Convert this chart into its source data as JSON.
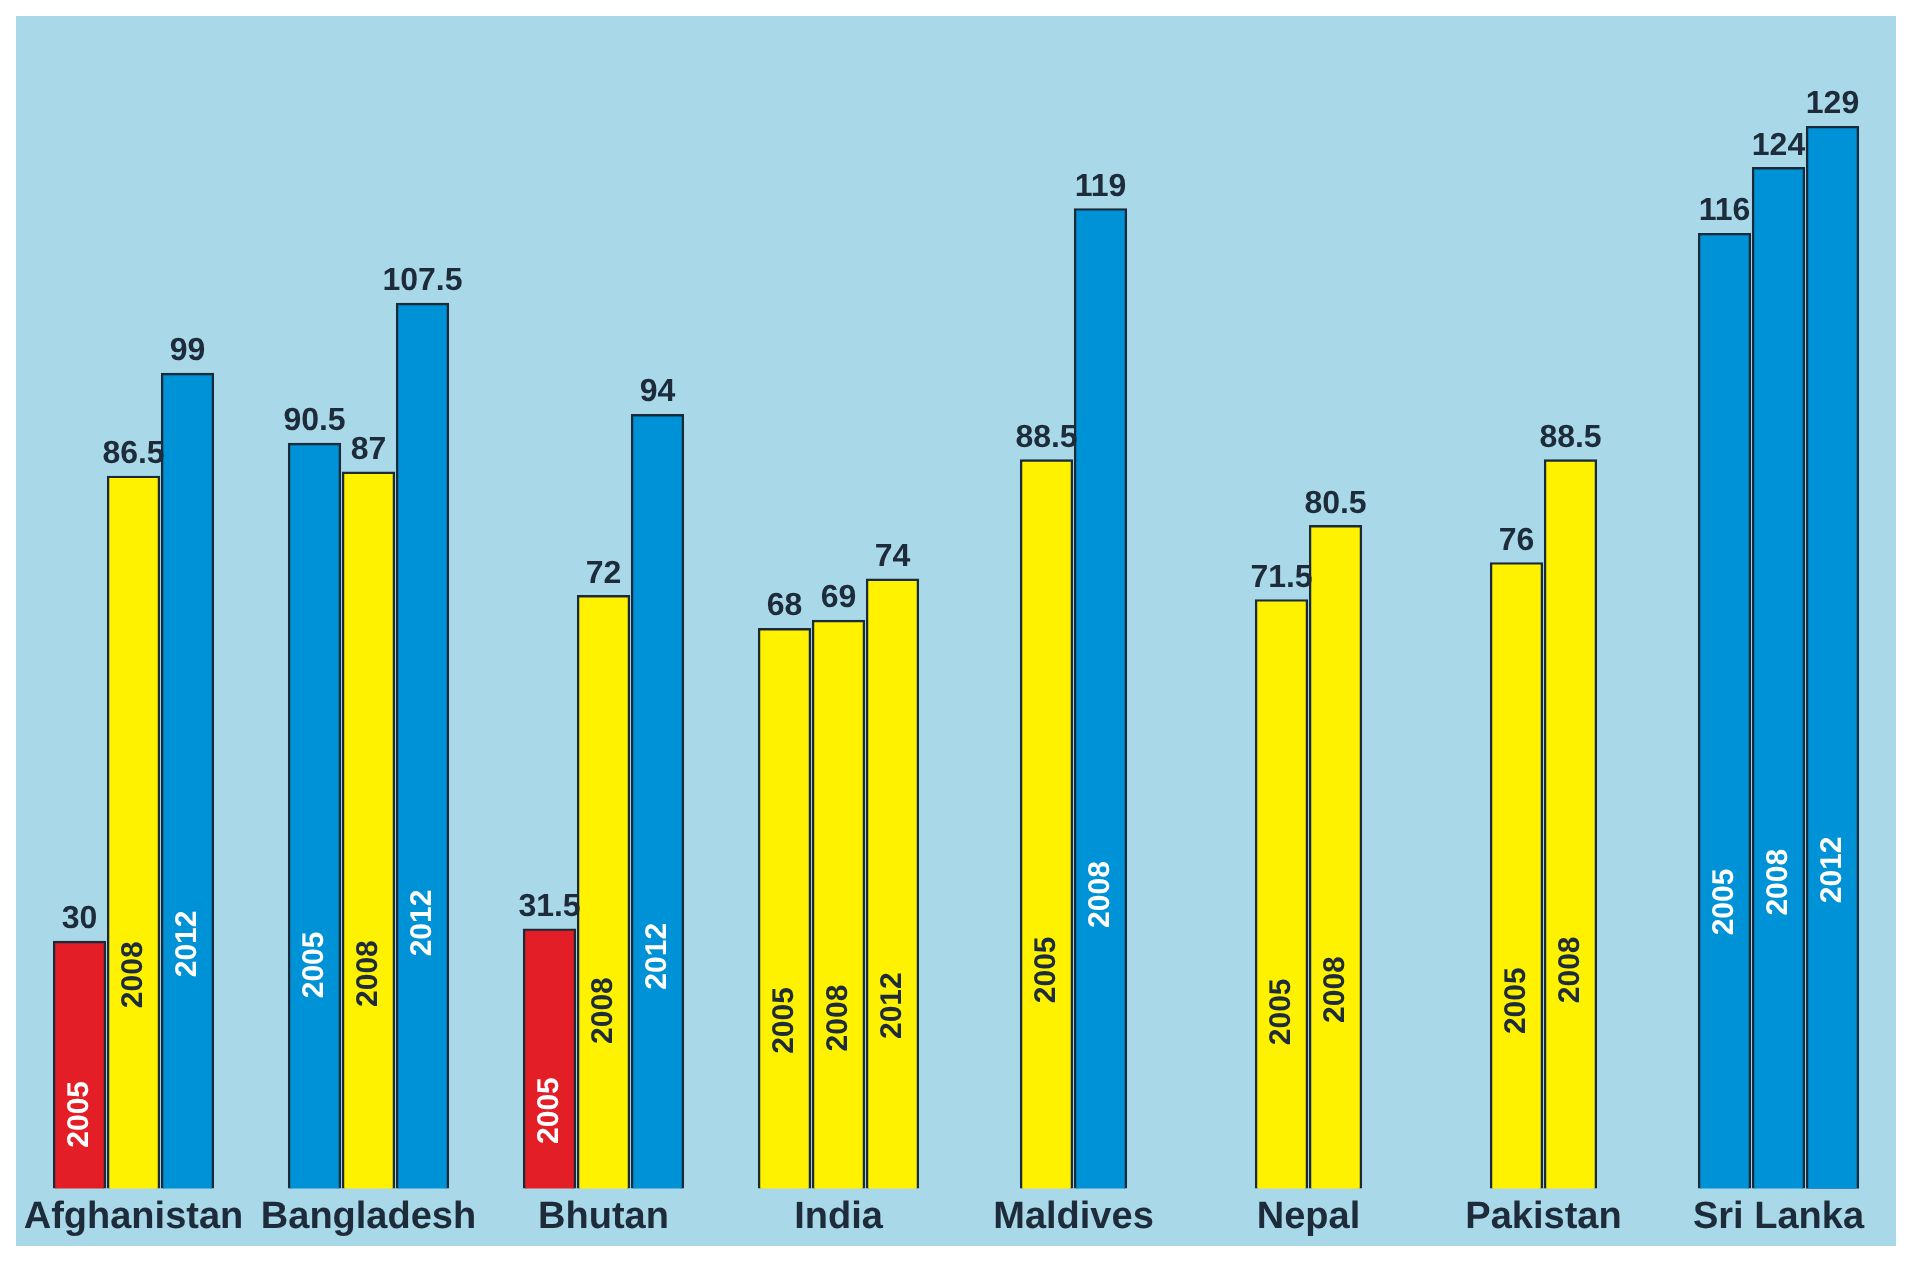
{
  "chart_data": {
    "type": "bar",
    "categories": [
      "Afghanistan",
      "Bangladesh",
      "Bhutan",
      "India",
      "Maldives",
      "Nepal",
      "Pakistan",
      "Sri Lanka"
    ],
    "series": [
      {
        "name": "2005",
        "values": [
          30,
          90.5,
          31.5,
          68,
          88.5,
          71.5,
          76,
          116
        ],
        "colors": [
          "#e31e26",
          "#0092d6",
          "#e31e26",
          "#fff200",
          "#fff200",
          "#fff200",
          "#fff200",
          "#0092d6"
        ]
      },
      {
        "name": "2008",
        "values": [
          86.5,
          87,
          72,
          69,
          119,
          80.5,
          88.5,
          124
        ],
        "colors": [
          "#fff200",
          "#fff200",
          "#fff200",
          "#fff200",
          "#0092d6",
          "#fff200",
          "#fff200",
          "#0092d6"
        ]
      },
      {
        "name": "2012",
        "values": [
          99,
          107.5,
          94,
          74,
          null,
          null,
          null,
          129
        ],
        "colors": [
          "#0092d6",
          "#0092d6",
          "#0092d6",
          "#fff200",
          null,
          null,
          null,
          "#0092d6"
        ]
      }
    ],
    "data_labels": true,
    "legend": false,
    "grid": false
  }
}
